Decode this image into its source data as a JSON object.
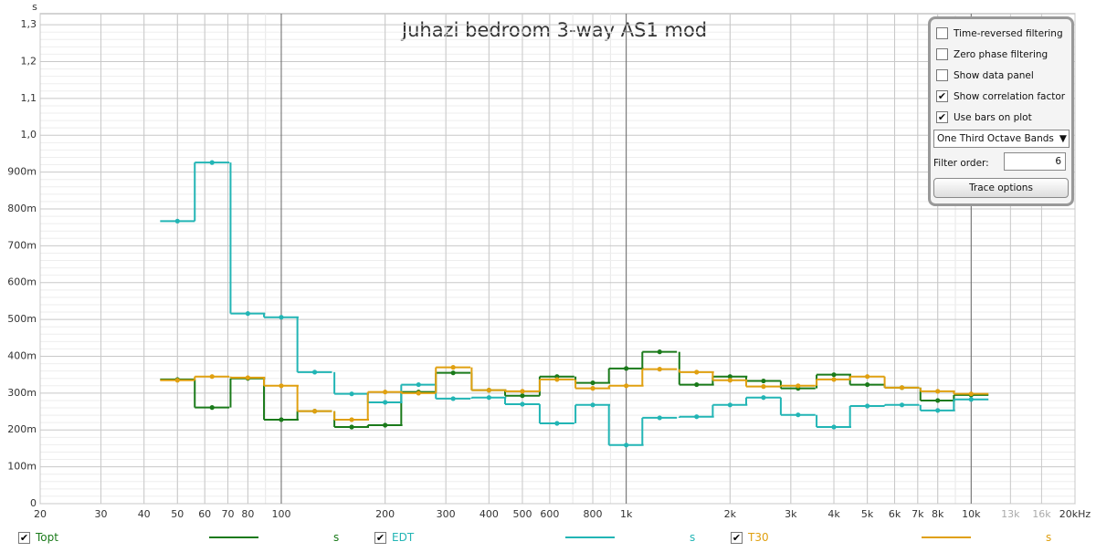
{
  "chart_data": {
    "type": "step",
    "title": "Juhazi bedroom 3-way AS1 mod",
    "y_label": "s",
    "xscale": "log",
    "grid": true,
    "xlim": [
      20,
      20000
    ],
    "ylim": [
      0,
      1.33
    ],
    "xticks": [
      20,
      30,
      40,
      50,
      60,
      70,
      80,
      100,
      200,
      300,
      400,
      500,
      600,
      800,
      {
        "value": 1000,
        "label": "1k"
      },
      {
        "value": 2000,
        "label": "2k"
      },
      {
        "value": 3000,
        "label": "3k"
      },
      {
        "value": 4000,
        "label": "4k"
      },
      {
        "value": 5000,
        "label": "5k"
      },
      {
        "value": 6000,
        "label": "6k"
      },
      {
        "value": 7000,
        "label": "7k"
      },
      {
        "value": 8000,
        "label": "8k"
      },
      {
        "value": 10000,
        "label": "10k"
      },
      {
        "value": 13000,
        "label": "13k"
      },
      {
        "value": 16000,
        "label": "16k"
      },
      {
        "value": 20000,
        "label": "20kHz"
      }
    ],
    "yticks": [
      0,
      {
        "value": 0.1,
        "label": "100m"
      },
      {
        "value": 0.2,
        "label": "200m"
      },
      {
        "value": 0.3,
        "label": "300m"
      },
      {
        "value": 0.4,
        "label": "400m"
      },
      {
        "value": 0.5,
        "label": "500m"
      },
      {
        "value": 0.6,
        "label": "600m"
      },
      {
        "value": 0.7,
        "label": "700m"
      },
      {
        "value": 0.8,
        "label": "800m"
      },
      {
        "value": 0.9,
        "label": "900m"
      },
      {
        "value": 1.0,
        "label": "1,0"
      },
      {
        "value": 1.1,
        "label": "1,1"
      },
      {
        "value": 1.2,
        "label": "1,2"
      },
      {
        "value": 1.3,
        "label": "1,3"
      }
    ],
    "x": [
      50,
      63,
      80,
      100,
      125,
      160,
      200,
      250,
      315,
      400,
      500,
      630,
      800,
      1000,
      1250,
      1600,
      2000,
      2500,
      3150,
      4000,
      5000,
      6300,
      8000,
      10000
    ],
    "series": [
      {
        "name": "Topt",
        "unit": "s",
        "color": "#1a7a1a",
        "values": [
          0.337,
          0.261,
          0.34,
          0.228,
          0.251,
          0.208,
          0.213,
          0.303,
          0.355,
          0.308,
          0.293,
          0.345,
          0.328,
          0.367,
          0.412,
          0.323,
          0.345,
          0.333,
          0.313,
          0.35,
          0.323,
          0.315,
          0.28,
          0.295
        ]
      },
      {
        "name": "EDT",
        "unit": "s",
        "color": "#22b5b5",
        "values": [
          0.767,
          0.926,
          0.516,
          0.506,
          0.357,
          0.298,
          0.275,
          0.323,
          0.285,
          0.288,
          0.27,
          0.218,
          0.268,
          0.159,
          0.233,
          0.236,
          0.268,
          0.288,
          0.241,
          0.208,
          0.265,
          0.268,
          0.253,
          0.283
        ]
      },
      {
        "name": "T30",
        "unit": "s",
        "color": "#e0a010",
        "values": [
          0.335,
          0.345,
          0.342,
          0.32,
          0.251,
          0.228,
          0.303,
          0.3,
          0.37,
          0.308,
          0.305,
          0.337,
          0.313,
          0.32,
          0.365,
          0.357,
          0.335,
          0.318,
          0.32,
          0.337,
          0.345,
          0.315,
          0.305,
          0.298
        ]
      }
    ]
  },
  "panel": {
    "checkboxes": [
      {
        "label": "Time-reversed filtering",
        "checked": false
      },
      {
        "label": "Zero phase filtering",
        "checked": false
      },
      {
        "label": "Show data panel",
        "checked": false
      },
      {
        "label": "Show correlation factor",
        "checked": true
      },
      {
        "label": "Use bars on plot",
        "checked": true
      }
    ],
    "dropdown": "One Third Octave Bands",
    "filter_label": "Filter order:",
    "filter_value": "6",
    "button": "Trace options"
  }
}
